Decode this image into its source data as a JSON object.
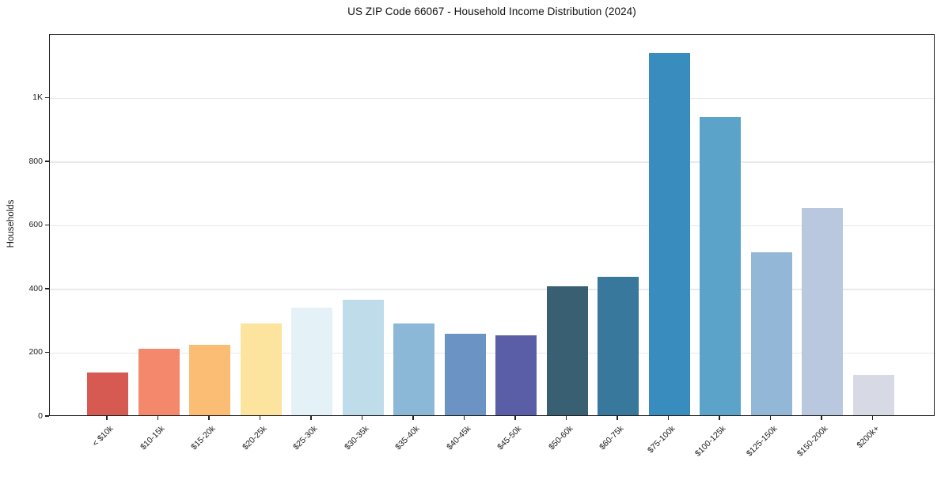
{
  "chart_data": {
    "type": "bar",
    "title": "US ZIP Code 66067 - Household Income Distribution (2024)",
    "xlabel": "",
    "ylabel": "Households",
    "categories": [
      "< $10k",
      "$10-15k",
      "$15-20k",
      "$20-25k",
      "$25-30k",
      "$30-35k",
      "$35-40k",
      "$40-45k",
      "$45-50k",
      "$50-60k",
      "$60-75k",
      "$75-100k",
      "$100-125k",
      "$125-150k",
      "$150-200k",
      "$200k+"
    ],
    "values": [
      134,
      208,
      222,
      287,
      338,
      362,
      288,
      255,
      252,
      406,
      435,
      1139,
      936,
      513,
      652,
      127
    ],
    "bar_colors": [
      "#d65a52",
      "#f4886d",
      "#fbbd74",
      "#fde49e",
      "#e4f1f6",
      "#bfdcea",
      "#8cb8d8",
      "#6b93c4",
      "#5a5ea7",
      "#395f72",
      "#38789d",
      "#388dbe",
      "#5ba3c9",
      "#92b7d7",
      "#b9c8de",
      "#d7d9e4"
    ],
    "ylim": [
      0,
      1200
    ],
    "yticks": [
      {
        "value": 0,
        "label": "0"
      },
      {
        "value": 200,
        "label": "200"
      },
      {
        "value": 400,
        "label": "400"
      },
      {
        "value": 600,
        "label": "600"
      },
      {
        "value": 800,
        "label": "800"
      },
      {
        "value": 1000,
        "label": "1K"
      }
    ],
    "grid": "horizontal",
    "grid_color": "#e9e9ed",
    "spine_color": "#222222",
    "legend": "none",
    "background_color": "#ffffff"
  }
}
